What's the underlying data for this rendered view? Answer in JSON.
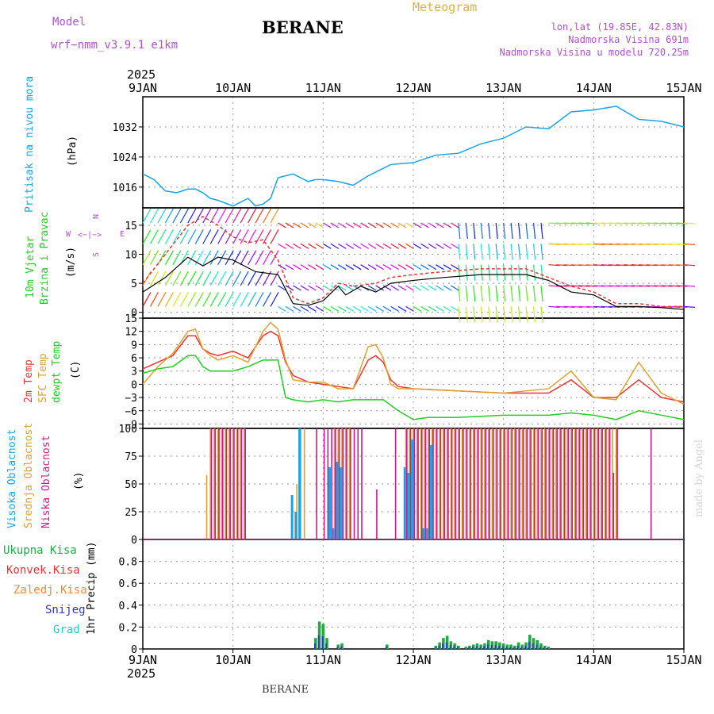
{
  "header": {
    "model_label": "Model",
    "model_name": "wrf−nmm_v3.9.1 e1km",
    "station": "BERANE",
    "product": "Meteogram",
    "coords": "lon,lat (19.85E, 42.83N)",
    "elevation": "Nadmorska Visina 691m",
    "model_elevation": "Nadmorska Visina u modelu 720.25m"
  },
  "footer": {
    "station": "BERANE",
    "credit": "made by Angel"
  },
  "axes": {
    "year": "2025",
    "days": [
      "9JAN",
      "10JAN",
      "11JAN",
      "12JAN",
      "13JAN",
      "14JAN",
      "15JAN"
    ]
  },
  "colors": {
    "pressure": "#1aa3e6",
    "temp2m": "#ee3333",
    "sfc_temp": "#e0a030",
    "dewpt": "#22cc22",
    "high_cloud": "#1aa3e6",
    "mid_cloud": "#e0a030",
    "low_cloud": "#cc1a8a",
    "wind_speed": "#000000",
    "gust": "#ee3333",
    "precip_total": "#22aa44",
    "precip_conv": "#ee3333",
    "precip_frz": "#ff8833",
    "snow": "#3333cc",
    "graupel": "#22cccc"
  },
  "panels": {
    "pressure": {
      "label1": "Pritisak na nivou mora",
      "label2": "(hPa)"
    },
    "wind": {
      "label1": "10m Vjetar",
      "label1b": "Brzina i Pravac",
      "label2": "(m/s)",
      "compass_w": "W",
      "compass_e": "E",
      "compass_n": "N",
      "compass_s": "S"
    },
    "temp": {
      "label_2m": "2m Temp",
      "label_sfc": "SFC Temp",
      "label_dew": "dewpt Temp",
      "label_unit": "(C)"
    },
    "cloud": {
      "label_high": "Visoka Oblacnost",
      "label_mid": "Srednja Oblacnost",
      "label_low": "Niska Oblacnost",
      "label_unit": "(%)"
    },
    "precip": {
      "label_total": "Ukupna Kisa",
      "label_conv": "Konvek.Kisa",
      "label_frz": "Zaledj.Kisa",
      "label_snow": "Snijeg",
      "label_grad": "Grad",
      "label_unit": "1hr Precip (mm)"
    }
  },
  "chart_data": [
    {
      "type": "line",
      "name": "pressure",
      "x_unit": "hours since 9JAN 00UTC",
      "ylim": [
        1010.5,
        1040
      ],
      "yticks": [
        1016,
        1024,
        1032
      ],
      "series": [
        {
          "name": "",
          "x": [
            0,
            3,
            6,
            9,
            12,
            14,
            16,
            18,
            20,
            24,
            28,
            30,
            32,
            34,
            36,
            40,
            42,
            44,
            46,
            48,
            52,
            56,
            60,
            66,
            72,
            78,
            84,
            90,
            96,
            102,
            108,
            114,
            120,
            126,
            132,
            138,
            144
          ],
          "values": [
            1019.5,
            1018,
            1015,
            1014.5,
            1015.5,
            1015.5,
            1014.5,
            1013,
            1012.5,
            1011,
            1013,
            1011,
            1011.5,
            1013,
            1018.5,
            1019.5,
            1018.5,
            1017.5,
            1018,
            1018,
            1017.5,
            1016.5,
            1019,
            1022,
            1022.5,
            1024.5,
            1025,
            1027.5,
            1029,
            1032,
            1031.5,
            1036,
            1036.5,
            1037.5,
            1034,
            1033.5,
            1032
          ]
        }
      ]
    },
    {
      "type": "line",
      "name": "wind",
      "x_unit": "hours since 9JAN 00UTC",
      "ylim": [
        -1,
        18
      ],
      "yticks": [
        0,
        5,
        10,
        15
      ],
      "series": [
        {
          "name": "",
          "x": [
            0,
            6,
            12,
            16,
            20,
            24,
            30,
            36,
            40,
            44,
            48,
            52,
            54,
            58,
            62,
            66,
            72,
            80,
            90,
            96,
            102,
            108,
            114,
            120,
            126,
            132,
            138,
            144
          ],
          "values": [
            3.5,
            6,
            9.5,
            8,
            9.5,
            9,
            7,
            6.5,
            1.5,
            1.2,
            2,
            4.5,
            3,
            4.5,
            3.5,
            5,
            5.5,
            6,
            6.5,
            6.5,
            6.5,
            5.5,
            3.5,
            3,
            1,
            1,
            0.8,
            0.5
          ]
        },
        {
          "name": "",
          "x": [
            0,
            6,
            12,
            16,
            20,
            24,
            28,
            32,
            36,
            40,
            44,
            48,
            52,
            56,
            62,
            66,
            72,
            80,
            90,
            96,
            102,
            108,
            114,
            120,
            126,
            132,
            138,
            144
          ],
          "values": [
            5,
            10,
            15,
            16.5,
            15,
            13,
            12,
            12.5,
            9,
            2.5,
            1.5,
            2.5,
            5,
            4.5,
            5,
            6,
            6.5,
            7,
            7.5,
            7.5,
            7.5,
            6,
            4.5,
            3.5,
            1.5,
            1.5,
            1,
            1
          ]
        }
      ]
    },
    {
      "type": "line",
      "name": "temperature",
      "x_unit": "hours since 9JAN 00UTC",
      "ylim": [
        -10,
        15
      ],
      "yticks": [
        -9,
        -6,
        -3,
        0,
        3,
        6,
        9,
        12,
        15
      ],
      "series": [
        {
          "name": "",
          "x": [
            0,
            4,
            8,
            12,
            14,
            16,
            18,
            20,
            24,
            28,
            32,
            34,
            36,
            38,
            40,
            44,
            48,
            52,
            56,
            60,
            62,
            64,
            66,
            68,
            72,
            84,
            96,
            108,
            114,
            120,
            126,
            132,
            138,
            144
          ],
          "values": [
            3.5,
            5,
            6.5,
            11,
            11,
            8,
            7,
            6.5,
            7.5,
            6,
            11,
            12,
            11,
            5,
            2,
            0.5,
            0,
            -0.5,
            -1,
            5.5,
            6.5,
            5,
            1,
            -0.5,
            -1,
            -1.5,
            -2,
            -2,
            1,
            -3,
            -3,
            1,
            -3,
            -4
          ]
        },
        {
          "name": "",
          "x": [
            0,
            4,
            8,
            12,
            14,
            16,
            18,
            20,
            24,
            28,
            32,
            34,
            36,
            38,
            40,
            44,
            48,
            52,
            56,
            60,
            62,
            64,
            66,
            68,
            72,
            84,
            96,
            108,
            114,
            120,
            126,
            132,
            138,
            144
          ],
          "values": [
            0,
            4,
            7,
            12,
            12.5,
            8,
            6.5,
            5.5,
            6.5,
            5,
            12,
            14,
            12.5,
            5.5,
            1,
            0.5,
            0.5,
            -1,
            -1,
            8.5,
            9,
            6,
            0,
            -1,
            -1,
            -1.5,
            -2,
            -1,
            3,
            -3,
            -3.5,
            5,
            -2,
            -4.5
          ]
        },
        {
          "name": "",
          "x": [
            0,
            4,
            8,
            12,
            14,
            16,
            18,
            20,
            24,
            28,
            32,
            36,
            38,
            40,
            44,
            48,
            52,
            56,
            60,
            64,
            68,
            72,
            76,
            84,
            96,
            108,
            114,
            120,
            126,
            132,
            138,
            144
          ],
          "values": [
            2.5,
            3.5,
            4,
            6.5,
            6.5,
            4,
            3,
            3,
            3,
            4,
            5.5,
            5.5,
            -3,
            -3.5,
            -4,
            -3.5,
            -4,
            -3.5,
            -3.5,
            -3.5,
            -6,
            -8,
            -7.5,
            -7.5,
            -7,
            -7,
            -6.5,
            -7,
            -8,
            -6,
            -7,
            -8
          ]
        }
      ]
    },
    {
      "type": "bar",
      "name": "cloud",
      "ylim": [
        0,
        100
      ],
      "yticks": [
        0,
        25,
        50,
        75,
        100
      ],
      "note": "bars at hourly positions, hours since 9JAN 00UTC",
      "high_values": [
        0,
        0,
        0,
        0,
        0,
        0,
        0,
        0,
        0,
        0,
        0,
        0,
        0,
        0,
        0,
        0,
        0,
        0,
        0,
        0,
        0,
        0,
        0,
        0,
        0,
        0,
        0,
        0,
        0,
        0,
        0,
        0,
        0,
        0,
        0,
        0,
        0,
        0,
        0,
        0,
        40,
        25,
        100,
        0,
        0,
        0,
        0,
        0,
        0,
        0,
        65,
        10,
        70,
        65,
        0,
        0,
        0,
        0,
        0,
        0,
        0,
        0,
        0,
        0,
        0,
        0,
        0,
        0,
        0,
        0,
        65,
        60,
        90,
        0,
        0,
        10,
        10,
        85,
        0,
        0,
        0,
        0,
        0,
        0,
        0,
        0,
        0,
        0,
        0,
        0,
        0,
        0,
        0,
        0,
        0,
        0,
        0,
        0,
        0,
        0,
        0,
        0,
        0,
        0,
        0,
        0,
        0,
        0,
        0,
        0,
        0,
        0,
        0,
        0,
        0,
        0,
        0,
        0,
        0,
        0,
        0,
        0,
        0,
        0,
        0,
        0,
        0,
        0,
        0,
        0,
        0,
        0,
        0,
        0,
        0,
        0,
        0,
        0,
        0,
        0,
        0,
        0,
        0,
        0,
        0
      ],
      "mid_values": [
        0,
        0,
        0,
        0,
        0,
        0,
        0,
        0,
        0,
        0,
        0,
        0,
        0,
        0,
        0,
        0,
        0,
        58,
        100,
        100,
        100,
        100,
        100,
        100,
        100,
        100,
        100,
        100,
        0,
        0,
        0,
        0,
        0,
        0,
        0,
        0,
        0,
        0,
        0,
        0,
        0,
        50,
        100,
        100,
        0,
        0,
        0,
        0,
        0,
        0,
        0,
        100,
        100,
        100,
        100,
        100,
        0,
        0,
        0,
        0,
        0,
        0,
        0,
        0,
        0,
        0,
        0,
        0,
        0,
        0,
        100,
        100,
        100,
        100,
        100,
        100,
        100,
        100,
        100,
        100,
        100,
        100,
        100,
        100,
        100,
        100,
        100,
        100,
        100,
        100,
        100,
        100,
        100,
        100,
        100,
        100,
        100,
        100,
        100,
        100,
        100,
        100,
        100,
        100,
        100,
        100,
        100,
        100,
        100,
        100,
        100,
        100,
        100,
        100,
        100,
        100,
        100,
        100,
        100,
        100,
        100,
        100,
        100,
        100,
        100,
        100,
        100,
        0,
        0,
        0,
        0,
        0,
        0,
        0,
        0,
        0,
        0,
        0,
        0,
        0,
        0,
        0,
        0,
        0,
        0,
        0,
        0,
        0
      ],
      "low_values": [
        0,
        0,
        0,
        0,
        0,
        0,
        0,
        0,
        0,
        0,
        0,
        0,
        0,
        0,
        0,
        0,
        0,
        0,
        100,
        100,
        100,
        100,
        100,
        100,
        100,
        100,
        100,
        100,
        0,
        0,
        0,
        0,
        0,
        0,
        0,
        0,
        0,
        0,
        0,
        0,
        0,
        0,
        0,
        0,
        0,
        0,
        100,
        0,
        100,
        100,
        100,
        100,
        100,
        100,
        100,
        100,
        100,
        100,
        100,
        0,
        0,
        0,
        45,
        0,
        0,
        0,
        0,
        100,
        0,
        0,
        100,
        100,
        100,
        100,
        100,
        100,
        100,
        100,
        100,
        100,
        100,
        100,
        100,
        100,
        100,
        100,
        100,
        100,
        100,
        100,
        100,
        100,
        100,
        100,
        100,
        100,
        100,
        100,
        100,
        100,
        100,
        100,
        100,
        100,
        100,
        100,
        100,
        100,
        100,
        100,
        100,
        100,
        100,
        100,
        100,
        100,
        100,
        100,
        100,
        100,
        100,
        100,
        100,
        100,
        100,
        60,
        100,
        0,
        0,
        0,
        0,
        0,
        0,
        0,
        0,
        100,
        0,
        0,
        0,
        0,
        0,
        0,
        0,
        0,
        0,
        0,
        0
      ]
    },
    {
      "type": "bar",
      "name": "precipitation",
      "ylim": [
        0,
        1
      ],
      "yticks": [
        0,
        0.2,
        0.4,
        0.6,
        0.8
      ],
      "bars": [
        [
          46,
          0.1
        ],
        [
          47,
          0.25
        ],
        [
          48,
          0.23
        ],
        [
          49,
          0.1
        ],
        [
          52,
          0.04
        ],
        [
          53,
          0.05
        ],
        [
          65,
          0.04
        ],
        [
          78,
          0.03
        ],
        [
          79,
          0.06
        ],
        [
          80,
          0.1
        ],
        [
          81,
          0.12
        ],
        [
          82,
          0.07
        ],
        [
          83,
          0.05
        ],
        [
          84,
          0.03
        ],
        [
          86,
          0.02
        ],
        [
          87,
          0.03
        ],
        [
          88,
          0.04
        ],
        [
          89,
          0.05
        ],
        [
          90,
          0.04
        ],
        [
          91,
          0.05
        ],
        [
          92,
          0.08
        ],
        [
          93,
          0.07
        ],
        [
          94,
          0.07
        ],
        [
          95,
          0.06
        ],
        [
          96,
          0.05
        ],
        [
          97,
          0.04
        ],
        [
          98,
          0.04
        ],
        [
          99,
          0.03
        ],
        [
          100,
          0.06
        ],
        [
          101,
          0.04
        ],
        [
          102,
          0.06
        ],
        [
          103,
          0.13
        ],
        [
          104,
          0.1
        ],
        [
          105,
          0.08
        ],
        [
          106,
          0.05
        ],
        [
          107,
          0.03
        ],
        [
          108,
          0.02
        ]
      ]
    }
  ]
}
